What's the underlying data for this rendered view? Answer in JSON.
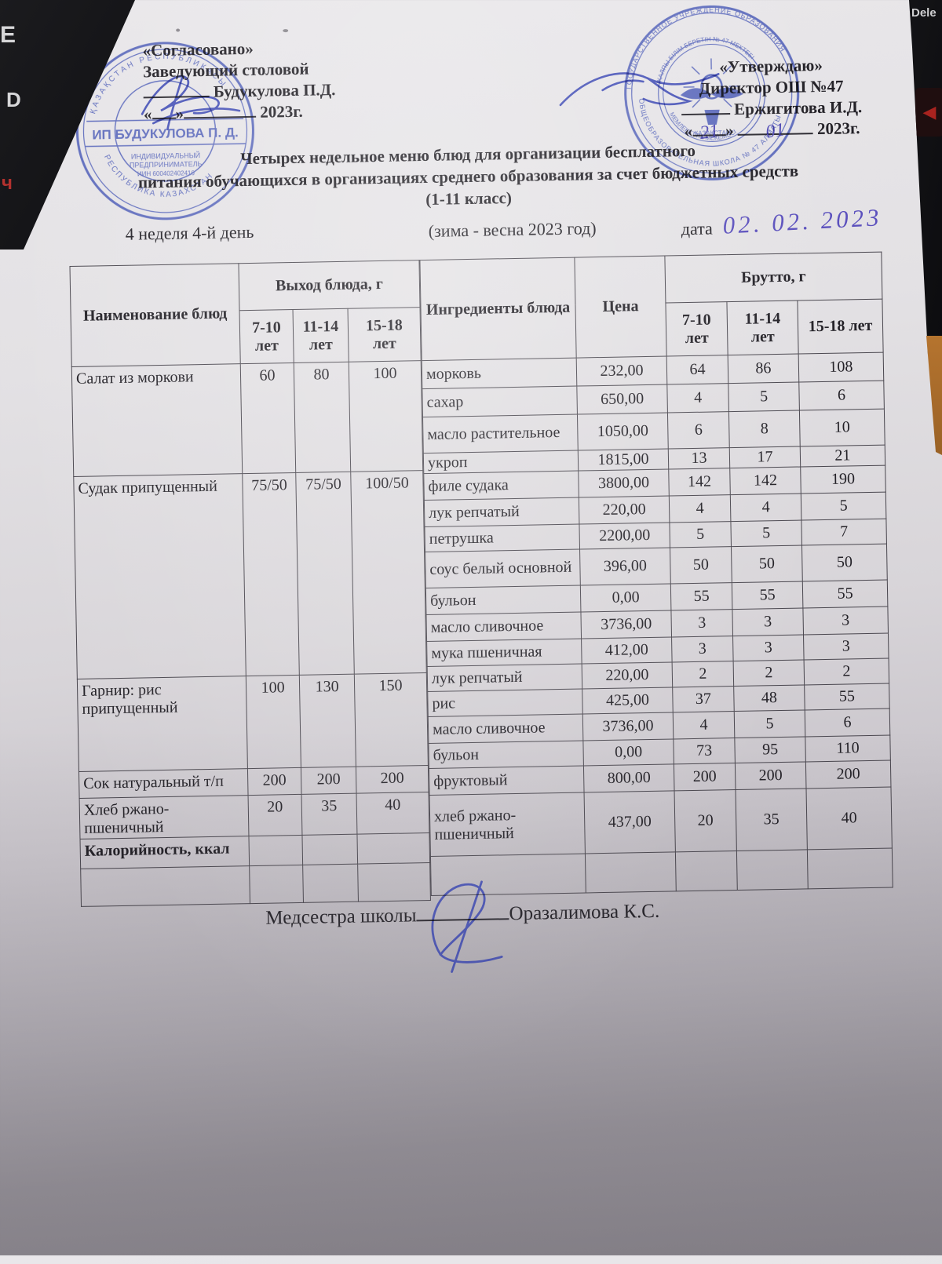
{
  "approval_left": {
    "line1": "«Согласовано»",
    "line2": "Заведующий столовой",
    "name": "Будукулова П.Д.",
    "quote_open": "«",
    "quote_close": "»",
    "year": "2023г."
  },
  "approval_right": {
    "line1": "«Утверждаю»",
    "line2": "Директор ОШ №47",
    "name": "Ержигитова И.Д.",
    "quote_open": "«",
    "quote_close": "»",
    "day_hw": "21",
    "month_hw": "01",
    "year": "2023г."
  },
  "title": {
    "line1": "Четырех недельное меню блюд для организации бесплатного",
    "line2": "питания обучающихся в организациях среднего образования за счет бюджетных средств",
    "line3": "(1-11 класс)"
  },
  "meta": {
    "week": "4 неделя 4-й день",
    "season": "(зима - весна 2023 год)",
    "date_label": "дата",
    "date_value": "02. 02. 2023"
  },
  "table": {
    "col_headers": {
      "name": "Наименование блюд",
      "output": "Выход блюда, г",
      "ingredients": "Ингредиенты блюда",
      "price": "Цена",
      "brutto": "Брутто, г"
    },
    "ages": [
      "7-10 лет",
      "11-14 лет",
      "15-18 лет"
    ],
    "dishes": [
      {
        "name": "Салат из моркови",
        "portions": [
          "60",
          "80",
          "100"
        ],
        "bold": false
      },
      {
        "name": "Судак припущенный",
        "portions": [
          "75/50",
          "75/50",
          "100/50"
        ],
        "bold": false
      },
      {
        "name": "Гарнир: рис припущенный",
        "portions": [
          "100",
          "130",
          "150"
        ],
        "bold": false
      },
      {
        "name": "Сок натуральный т/п",
        "portions": [
          "200",
          "200",
          "200"
        ],
        "bold": false
      },
      {
        "name": "Хлеб ржано-пшеничный",
        "portions": [
          "20",
          "35",
          "40"
        ],
        "bold": false
      },
      {
        "name": "Калорийность, ккал",
        "portions": [
          "",
          "",
          ""
        ],
        "bold": true
      },
      {
        "name": "",
        "portions": [
          "",
          "",
          ""
        ],
        "bold": false
      }
    ],
    "ingredients": [
      {
        "name": "морковь",
        "price": "232,00",
        "brutto": [
          "64",
          "86",
          "108"
        ]
      },
      {
        "name": "сахар",
        "price": "650,00",
        "brutto": [
          "4",
          "5",
          "6"
        ]
      },
      {
        "name": "масло растительное",
        "price": "1050,00",
        "brutto": [
          "6",
          "8",
          "10"
        ]
      },
      {
        "name": "укроп",
        "price": "1815,00",
        "brutto": [
          "13",
          "17",
          "21"
        ]
      },
      {
        "name": "филе судака",
        "price": "3800,00",
        "brutto": [
          "142",
          "142",
          "190"
        ]
      },
      {
        "name": "лук репчатый",
        "price": "220,00",
        "brutto": [
          "4",
          "4",
          "5"
        ]
      },
      {
        "name": "петрушка",
        "price": "2200,00",
        "brutto": [
          "5",
          "5",
          "7"
        ]
      },
      {
        "name": "соус белый основной",
        "price": "396,00",
        "brutto": [
          "50",
          "50",
          "50"
        ]
      },
      {
        "name": "бульон",
        "price": "0,00",
        "brutto": [
          "55",
          "55",
          "55"
        ]
      },
      {
        "name": "масло сливочное",
        "price": "3736,00",
        "brutto": [
          "3",
          "3",
          "3"
        ]
      },
      {
        "name": "мука пшеничная",
        "price": "412,00",
        "brutto": [
          "3",
          "3",
          "3"
        ]
      },
      {
        "name": "лук репчатый",
        "price": "220,00",
        "brutto": [
          "2",
          "2",
          "2"
        ]
      },
      {
        "name": "рис",
        "price": "425,00",
        "brutto": [
          "37",
          "48",
          "55"
        ]
      },
      {
        "name": "масло сливочное",
        "price": "3736,00",
        "brutto": [
          "4",
          "5",
          "6"
        ]
      },
      {
        "name": "бульон",
        "price": "0,00",
        "brutto": [
          "73",
          "95",
          "110"
        ]
      },
      {
        "name": "фруктовый",
        "price": "800,00",
        "brutto": [
          "200",
          "200",
          "200"
        ]
      },
      {
        "name": "хлеб ржано-пшеничный",
        "price": "437,00",
        "brutto": [
          "20",
          "35",
          "40"
        ]
      },
      {
        "name": "",
        "price": "",
        "brutto": [
          "",
          "",
          ""
        ]
      }
    ]
  },
  "footer": {
    "label": "Медсестра школы",
    "name": "Оразалимова К.С."
  },
  "stamps": {
    "left_ring_top": "ҚАЗАҚСТАН РЕСПУБЛИКАСЫ",
    "left_ring_bottom": "РЕСПУБЛИКА КАЗАХСТАН",
    "left_banner": "ИП БУДУКУЛОВА П. Д.",
    "left_inner1": "ИНДИВИДУАЛЬНЫЙ",
    "left_inner2": "ПРЕДПРИНИМАТЕЛЬ",
    "left_inner3": "ИИН 600402402416",
    "right_ring_top": "ГОСУДАРСТВЕННОЕ УЧРЕЖДЕНИЕ ОБРАЗОВАНИЯ",
    "right_ring_bottom": "ОБЩЕОБРАЗОВАТЕЛЬНАЯ ШКОЛА № 47 АЛМАТЫ",
    "right_inner_top": "ЖАЛПЫ БІЛІМ БЕРЕТІН № 47 МЕКТЕБІ",
    "right_inner_bottom": "МЕМЛЕКЕТТІК МЕКЕМЕСІ",
    "right_center": "ҚАЗАҚСТАН"
  },
  "keyboard": {
    "delete_key": "Dele",
    "key_e": "E",
    "key_d": "D",
    "key_red": "ч",
    "arrow": "◀"
  },
  "colors": {
    "ink_blue": "#4253b4",
    "handwriting": "#5b50bd",
    "paper_dark": "#97939a",
    "text": "#232127"
  }
}
